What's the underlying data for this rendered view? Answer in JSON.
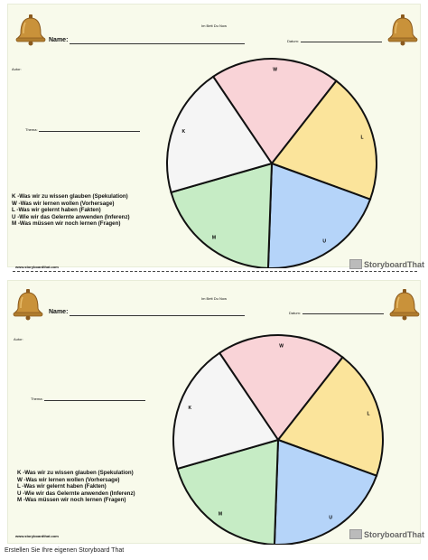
{
  "worksheet": {
    "title": "Im Bett Du Now",
    "name_label": "Name:",
    "date_label": "Datum:",
    "author_label": "Autor:",
    "topic_label": "Thema:",
    "kwl_lines": [
      "K -Was wir zu wissen glauben (Spekulation)",
      "W -Was wir lernen wollen (Vorhersage)",
      "L -Was wir gelernt haben (Fakten)",
      "U -Wie wir das Gelernte anwenden (Inferenz)",
      "M -Was müssen wir noch lernen (Fragen)"
    ],
    "segments": [
      {
        "letter": "W",
        "color": "#f9d3d7"
      },
      {
        "letter": "L",
        "color": "#fbe49b"
      },
      {
        "letter": "U",
        "color": "#b5d4f9"
      },
      {
        "letter": "M",
        "color": "#c6ecc5"
      },
      {
        "letter": "K",
        "color": "#f5f5f5"
      }
    ],
    "footer_url": "www.storyboardthat.com",
    "brand": "StoryboardThat"
  },
  "caption": "Erstellen Sie Ihre eigenen Storyboard That",
  "colors": {
    "sheet_bg": "#f8faeb",
    "bell": "#c9923a",
    "bell_dark": "#8a5a1e"
  },
  "icons": [
    "bell-icon",
    "storyboardthat-logo-icon"
  ]
}
